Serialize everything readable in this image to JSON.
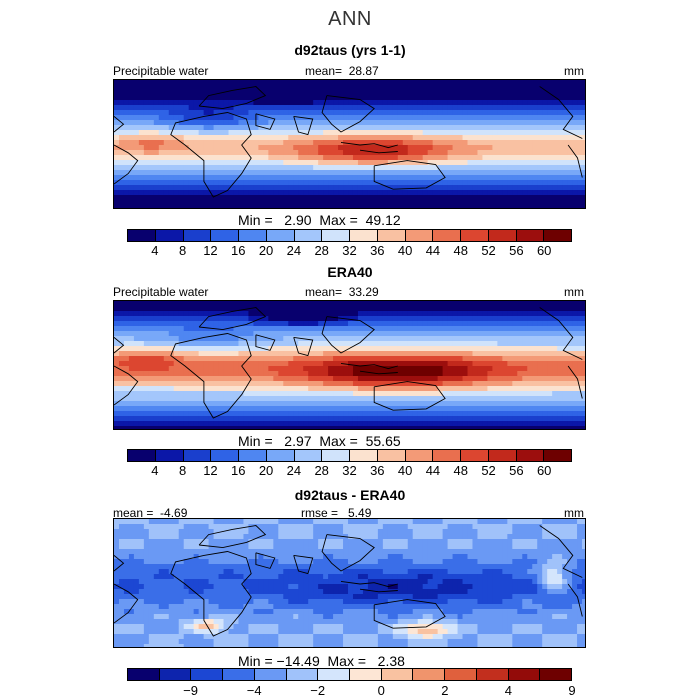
{
  "header": {
    "title": "ANN"
  },
  "panels": [
    {
      "title": "d92taus (yrs 1-1)",
      "left_label": "Precipitable water",
      "center_label": "mean=  28.87",
      "right_label": "mm",
      "stats": "Min =   2.90  Max =  49.12",
      "ticks": [
        "4",
        "8",
        "12",
        "16",
        "20",
        "24",
        "28",
        "32",
        "36",
        "40",
        "44",
        "48",
        "52",
        "56",
        "60"
      ],
      "style": "model"
    },
    {
      "title": "ERA40",
      "left_label": "Precipitable water",
      "center_label": "mean=  33.29",
      "right_label": "mm",
      "stats": "Min =   2.97  Max =  55.65",
      "ticks": [
        "4",
        "8",
        "12",
        "16",
        "20",
        "24",
        "28",
        "32",
        "36",
        "40",
        "44",
        "48",
        "52",
        "56",
        "60"
      ],
      "style": "obs"
    },
    {
      "title": "d92taus - ERA40",
      "left_label": "mean =  -4.69",
      "center_label": "rmse =   5.49",
      "right_label": "mm",
      "stats": "Min = −14.49  Max =   2.38",
      "ticks": [
        "−9",
        "−4",
        "−2",
        "0",
        "2",
        "4",
        "9"
      ],
      "style": "diff"
    }
  ],
  "colors": {
    "abs_scale": [
      "#08006e",
      "#0b17a8",
      "#1a3fcd",
      "#2f63e6",
      "#4f86f1",
      "#78a8f8",
      "#a3c6fb",
      "#d0e3fb",
      "#fbe2cf",
      "#f9c1a2",
      "#f39a77",
      "#e96f4f",
      "#dc4630",
      "#c2291c",
      "#9c0e0d",
      "#6e0000"
    ],
    "diff_scale": [
      "#08006e",
      "#0d24ad",
      "#1c47d3",
      "#3a6ee8",
      "#6a99f4",
      "#a0c2fa",
      "#d4e5fc",
      "#fde6d5",
      "#f9c2a1",
      "#f0946c",
      "#e0603d",
      "#c22f1e",
      "#930b09",
      "#6e0000"
    ]
  }
}
